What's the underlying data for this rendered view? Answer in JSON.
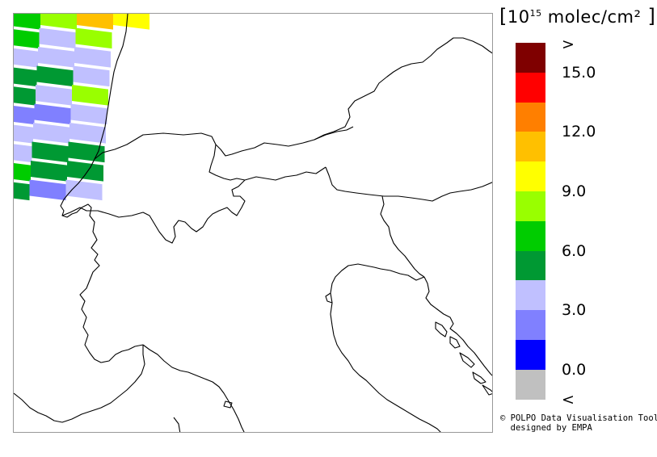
{
  "legend": {
    "unit_prefix": "10",
    "unit_exp": "15",
    "unit_suffix": " molec/cm²",
    "colors": [
      "#7f0000",
      "#ff0000",
      "#ff7f00",
      "#ffc000",
      "#ffff00",
      "#99ff00",
      "#00cc00",
      "#009933",
      "#c0c0ff",
      "#8080ff",
      "#0000ff",
      "#c0c0c0"
    ],
    "labels": [
      {
        "text": ">",
        "slot": 0
      },
      {
        "text": "15.0",
        "slot": 1
      },
      {
        "text": "12.0",
        "slot": 3
      },
      {
        "text": "9.0",
        "slot": 5
      },
      {
        "text": "6.0",
        "slot": 7
      },
      {
        "text": "3.0",
        "slot": 9
      },
      {
        "text": "0.0",
        "slot": 11
      },
      {
        "text": "<",
        "slot": 12
      }
    ]
  },
  "credits": {
    "line1": "© POLPO Data Visualisation Tool",
    "line2": "designed by EMPA"
  },
  "swath": {
    "rows": [
      {
        "cells": [
          "#00cc00",
          "#99ff00",
          "#ffc000",
          "#ffff00"
        ]
      },
      {
        "cells": [
          "#00cc00",
          "#c0c0ff",
          "#99ff00"
        ]
      },
      {
        "cells": [
          "#c0c0ff",
          "#c0c0ff",
          "#c0c0ff"
        ]
      },
      {
        "cells": [
          "#009933",
          "#009933",
          "#c0c0ff"
        ]
      },
      {
        "cells": [
          "#009933",
          "#c0c0ff",
          "#99ff00"
        ]
      },
      {
        "cells": [
          "#8080ff",
          "#8080ff",
          "#c0c0ff"
        ]
      },
      {
        "cells": [
          "#c0c0ff",
          "#c0c0ff",
          "#c0c0ff"
        ]
      },
      {
        "cells": [
          "#c0c0ff",
          "#009933",
          "#009933"
        ]
      },
      {
        "cells": [
          "#00cc00",
          "#009933",
          "#009933"
        ]
      },
      {
        "cells": [
          "#009933",
          "#8080ff",
          "#c0c0ff"
        ]
      }
    ]
  }
}
